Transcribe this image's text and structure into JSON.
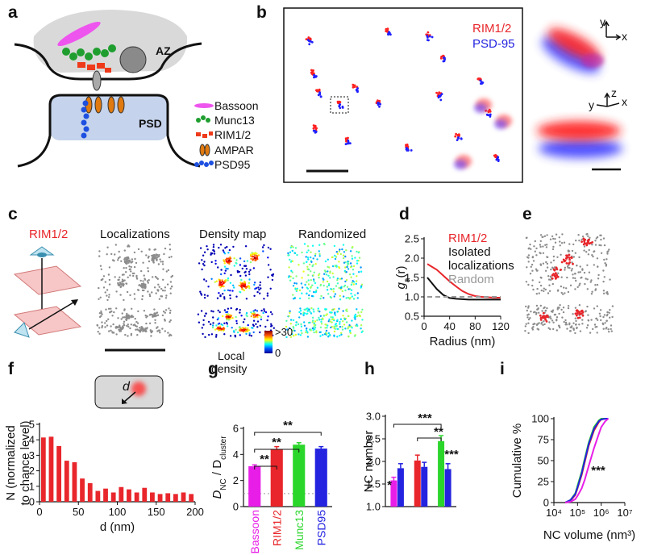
{
  "panels": {
    "a": {
      "letter": "a",
      "az": "AZ",
      "psd": "PSD",
      "legend": [
        "Bassoon",
        "Munc13",
        "RIM1/2",
        "AMPAR",
        "PSD95"
      ]
    },
    "b": {
      "letter": "b",
      "legend": [
        "RIM1/2",
        "PSD-95"
      ],
      "axes_top": [
        "y",
        "x"
      ],
      "axes_bottom": [
        "z",
        "y",
        "x"
      ]
    },
    "c": {
      "letter": "c",
      "protein": "RIM1/2",
      "titles": [
        "Localizations",
        "Density map",
        "Randomized"
      ],
      "colorbar": {
        "label": [
          "Local",
          "density"
        ],
        "max": ">30",
        "min": "0"
      }
    },
    "e": {
      "letter": "e"
    }
  },
  "chart_data": [
    {
      "panel": "d",
      "type": "line",
      "ylabel": [
        "g",
        "a",
        "(r)"
      ],
      "xlabel": "Radius (nm)",
      "x": [
        5,
        10,
        20,
        30,
        40,
        50,
        60,
        70,
        80,
        90,
        100,
        110,
        120
      ],
      "series": [
        {
          "name": "RIM1/2",
          "color": "#e8262b",
          "values": [
            1.85,
            1.8,
            1.7,
            1.55,
            1.4,
            1.27,
            1.15,
            1.07,
            1.02,
            1.0,
            0.99,
            0.98,
            0.98
          ]
        },
        {
          "name": "Isolated\nlocalizations",
          "color": "#111111",
          "values": [
            1.5,
            1.4,
            1.2,
            1.05,
            0.97,
            0.95,
            0.94,
            0.93,
            0.93,
            0.93,
            0.93,
            0.93,
            0.93
          ]
        },
        {
          "name": "Random",
          "color": "#999999",
          "dashed": true,
          "values": [
            1,
            1,
            1,
            1,
            1,
            1,
            1,
            1,
            1,
            1,
            1,
            1,
            1
          ]
        }
      ],
      "xlim": [
        0,
        120
      ],
      "xticks": [
        0,
        40,
        80,
        120
      ],
      "ylim": [
        0.5,
        2.5
      ],
      "yticks": [
        0.5,
        {
          "value": 1,
          "label": "1.0"
        },
        1.5,
        {
          "value": 2,
          "label": "2.0"
        },
        2.5
      ]
    },
    {
      "panel": "f",
      "type": "histogram",
      "ylabel": [
        "N (normalized",
        "to chance level)"
      ],
      "xlabel": "d (nm)",
      "inset_label": "d",
      "color": "#e8262b",
      "bins": [
        0,
        10,
        20,
        30,
        40,
        50,
        60,
        70,
        80,
        90,
        100,
        110,
        120,
        130,
        140,
        150,
        160,
        170,
        180,
        190,
        200
      ],
      "counts": [
        4.15,
        4.2,
        3.6,
        2.65,
        2.55,
        1.5,
        1.2,
        0.7,
        0.85,
        0.6,
        0.95,
        0.8,
        0.6,
        0.9,
        0.6,
        0.5,
        0.55,
        0.5,
        0.6,
        0.5
      ],
      "xlim": [
        0,
        200
      ],
      "xticks": [
        0,
        50,
        100,
        150,
        200
      ],
      "ylim": [
        0,
        5
      ],
      "yticks": [
        0,
        1,
        2,
        3,
        4,
        5
      ]
    },
    {
      "panel": "g",
      "type": "bar",
      "ylabel": [
        "D",
        "NC",
        " / D",
        "cluster"
      ],
      "categories": [
        "Bassoon",
        "RIM1/2",
        "Munc13",
        "PSD95"
      ],
      "colors": [
        "#e81ee8",
        "#e8262b",
        "#2bd62b",
        "#2323e0"
      ],
      "values": [
        3.1,
        4.4,
        4.75,
        4.45
      ],
      "errors": [
        0.1,
        0.2,
        0.15,
        0.15
      ],
      "refline": 1,
      "annotations": [
        "**",
        "**",
        "**"
      ],
      "ylim": [
        0,
        6
      ],
      "yticks": [
        0,
        2,
        4,
        6
      ]
    },
    {
      "panel": "h",
      "type": "bar",
      "ylabel": "NC number",
      "group_size": 2,
      "colors": [
        "#e81ee8",
        "#2323e0",
        "#e8262b",
        "#2323e0",
        "#2bd62b",
        "#2323e0"
      ],
      "values": [
        1.58,
        1.85,
        2.02,
        1.88,
        2.45,
        1.83
      ],
      "errors": [
        0.07,
        0.1,
        0.12,
        0.1,
        0.12,
        0.12
      ],
      "annotations": [
        "*",
        "***",
        "**",
        "***"
      ],
      "ylim": [
        1,
        3
      ],
      "yticks": [
        {
          "value": 1,
          "label": "1.0"
        },
        1.5,
        {
          "value": 2,
          "label": "2.0"
        },
        2.5,
        {
          "value": 3,
          "label": "3.0"
        }
      ]
    },
    {
      "panel": "i",
      "type": "line",
      "xscale": "log",
      "ylabel": "Cumulative %",
      "xlabel": "NC volume (nm³)",
      "annotations": [
        "***"
      ],
      "x": [
        30000,
        50000,
        80000,
        100000,
        150000,
        200000,
        300000,
        500000,
        800000,
        1000000,
        1500000,
        2000000
      ],
      "series": [
        {
          "color": "#e8262b",
          "values": [
            0,
            2,
            9,
            17,
            33,
            48,
            68,
            86,
            96,
            99,
            100,
            100
          ]
        },
        {
          "color": "#2bd62b",
          "values": [
            0,
            3,
            11,
            20,
            37,
            52,
            72,
            90,
            98,
            100,
            100,
            100
          ]
        },
        {
          "color": "#2323e0",
          "values": [
            0,
            3,
            10,
            18,
            35,
            50,
            70,
            88,
            97,
            99,
            100,
            100
          ]
        },
        {
          "color": "#e81ee8",
          "values": [
            0,
            1,
            4,
            8,
            17,
            27,
            44,
            65,
            82,
            90,
            97,
            100
          ]
        }
      ],
      "xlim": [
        10000,
        10000000
      ],
      "xticks": [
        {
          "value": 10000,
          "label": "10⁴"
        },
        {
          "value": 100000,
          "label": "10⁵"
        },
        {
          "value": 1000000,
          "label": "10⁶"
        },
        {
          "value": 10000000,
          "label": "10⁷"
        }
      ],
      "ylim": [
        0,
        100
      ],
      "yticks": [
        0,
        25,
        50,
        75,
        100
      ]
    }
  ]
}
